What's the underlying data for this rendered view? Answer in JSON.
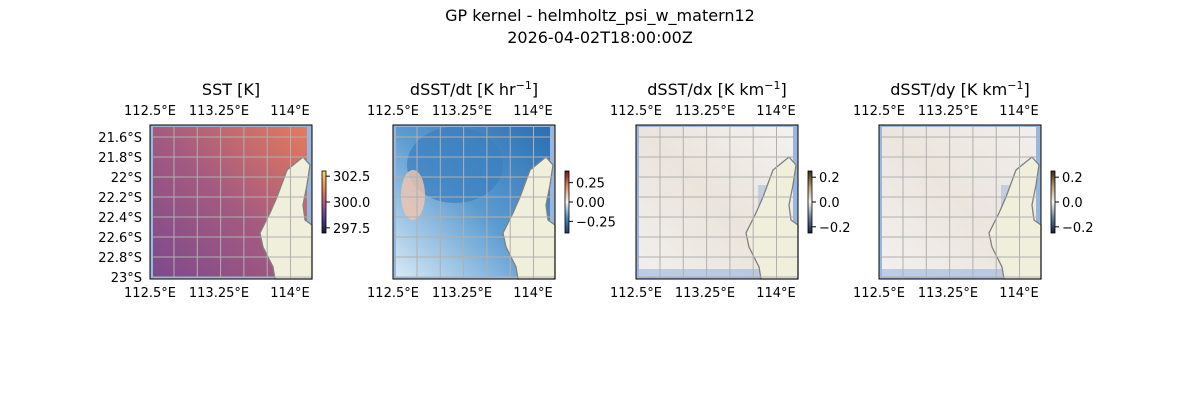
{
  "figure": {
    "title_line1": "GP kernel - helmholtz_psi_w_matern12",
    "title_line2": "2026-04-02T18:00:00Z"
  },
  "chart_data": [
    {
      "type": "heatmap",
      "title": "SST [K]",
      "title_sup": "",
      "x_ticks": [
        "112.5°E",
        "113.25°E",
        "114°E"
      ],
      "y_ticks": [
        "21.6°S",
        "21.8°S",
        "22°S",
        "22.2°S",
        "22.4°S",
        "22.6°S",
        "22.8°S",
        "23°S"
      ],
      "colorbar_ticks": [
        "302.5",
        "300.0",
        "297.5"
      ],
      "colorbar_range": [
        297,
        303
      ],
      "colormap": [
        "#0b1f3f",
        "#5a3e8e",
        "#b65a7f",
        "#ee8a5a",
        "#f7d857"
      ],
      "field_colors": [
        "#7d4a8c",
        "#a45a80",
        "#e67a5c"
      ]
    },
    {
      "type": "heatmap",
      "title": "dSST/dt [K hr",
      "title_sup": "−1",
      "title_end": "]",
      "x_ticks": [
        "112.5°E",
        "113.25°E",
        "114°E"
      ],
      "y_ticks": [],
      "colorbar_ticks": [
        "0.25",
        "0.00",
        "−0.25"
      ],
      "colorbar_range": [
        -0.4,
        0.4
      ],
      "colormap": [
        "#1b3f7a",
        "#4a8ac4",
        "#f6f6f6",
        "#e48a6a",
        "#7a0f1f"
      ],
      "field_colors": [
        "#d6e8f4",
        "#5a9bd0",
        "#2a6fb2"
      ]
    },
    {
      "type": "heatmap",
      "title": "dSST/dx [K km",
      "title_sup": "−1",
      "title_end": "]",
      "x_ticks": [
        "112.5°E",
        "113.25°E",
        "114°E"
      ],
      "y_ticks": [],
      "colorbar_ticks": [
        "0.2",
        "0.0",
        "−0.2"
      ],
      "colorbar_range": [
        -0.25,
        0.25
      ],
      "colormap": [
        "#0f2340",
        "#6a7f9a",
        "#f6f4f2",
        "#b89a72",
        "#3a2a10"
      ],
      "field_colors": [
        "#f2efec",
        "#ebe4dc",
        "#f4f1ef"
      ]
    },
    {
      "type": "heatmap",
      "title": "dSST/dy [K km",
      "title_sup": "−1",
      "title_end": "]",
      "x_ticks": [
        "112.5°E",
        "113.25°E",
        "114°E"
      ],
      "y_ticks": [],
      "colorbar_ticks": [
        "0.2",
        "0.0",
        "−0.2"
      ],
      "colorbar_range": [
        -0.25,
        0.25
      ],
      "colormap": [
        "#0f2340",
        "#6a7f9a",
        "#f6f4f2",
        "#b89a72",
        "#3a2a10"
      ],
      "field_colors": [
        "#f3f0ee",
        "#ece5de",
        "#f2eeeb"
      ]
    }
  ],
  "colors": {
    "land": "#efefdb",
    "water": "#97b6e0",
    "coast": "#808080",
    "grid": "#b0b0b0"
  }
}
